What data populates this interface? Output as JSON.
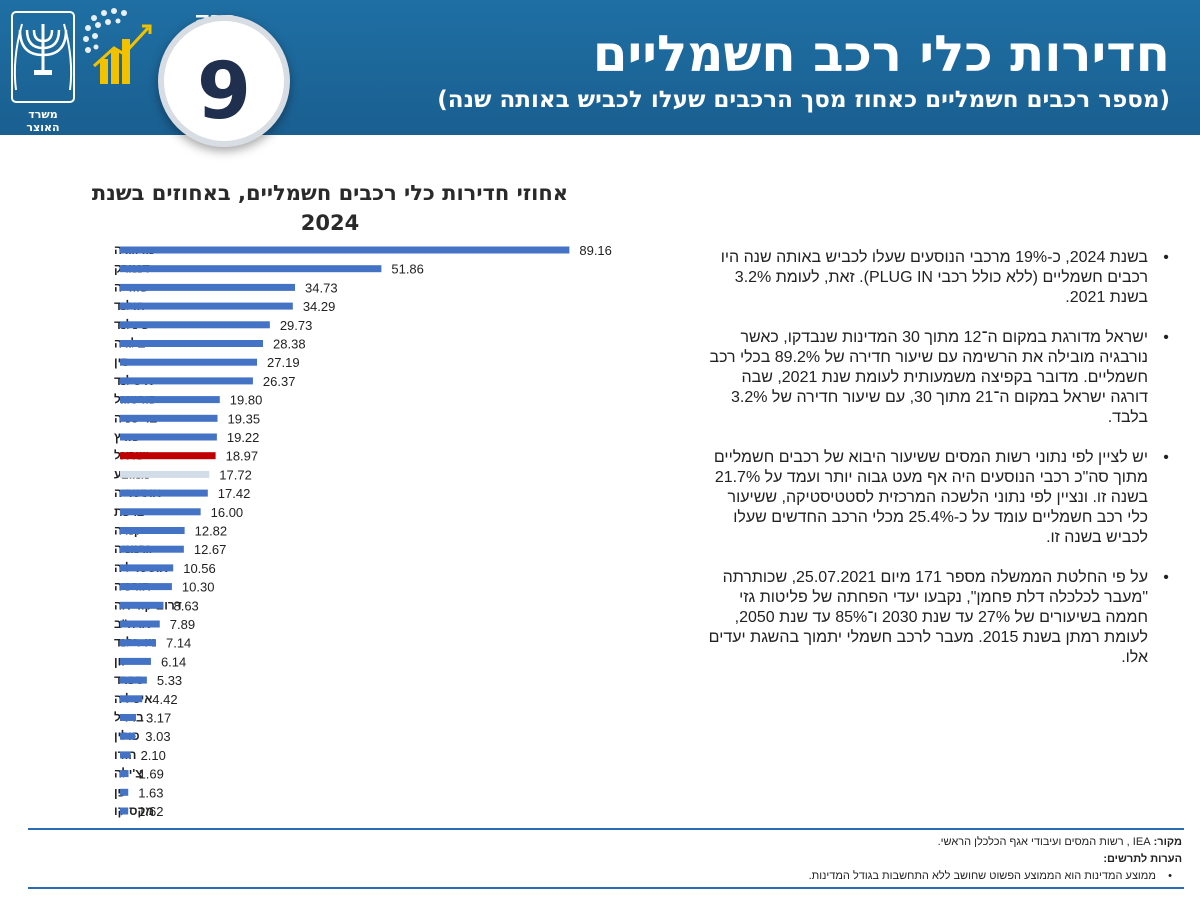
{
  "header": {
    "title": "חדירות כלי רכב חשמליים",
    "subtitle": "(מספר רכבים חשמליים כאחוז מסך הרכבים שעלו לכביש באותה שנה)",
    "chapter_word": "פרק",
    "chapter_number": "9",
    "ministry_name": "משרד האוצר"
  },
  "chart_data": {
    "type": "bar",
    "orientation": "horizontal",
    "title": "אחוזי חדירות כלי רכבים חשמליים, באחוזים בשנת 2024",
    "title_line1": "אחוזי חדירות כלי רכבים חשמליים, באחוזים בשנת",
    "title_line2": "2024",
    "categories": [
      "נורווגיה",
      "דנמרק",
      "שוודיה",
      "הולנד",
      "פינלנד",
      "בלגיה",
      "סין",
      "איסלנד",
      "פורטוגל",
      "בריטניה",
      "שוויץ",
      "ישראל",
      "ממוצע",
      "אוסטריה",
      "צרפת",
      "קנדה",
      "גרמניה",
      "אוסטרליה",
      "תורכיה",
      "דרום קוריאה",
      "ארה\"ב",
      "ניו זילנד",
      "יוון",
      "ספרד",
      "איטליה",
      "ברזיל",
      "פולין",
      "הודו",
      "צ'ילה",
      "יפן",
      "מקסיקו"
    ],
    "values": [
      89.16,
      51.86,
      34.73,
      34.29,
      29.73,
      28.38,
      27.19,
      26.37,
      19.8,
      19.35,
      19.22,
      18.97,
      17.72,
      17.42,
      16.0,
      12.82,
      12.67,
      10.56,
      10.3,
      8.63,
      7.89,
      7.14,
      6.14,
      5.33,
      4.42,
      3.17,
      3.03,
      2.1,
      1.69,
      1.63,
      1.62
    ],
    "value_labels": [
      "89.16",
      "51.86",
      "34.73",
      "34.29",
      "29.73",
      "28.38",
      "27.19",
      "26.37",
      "19.80",
      "19.35",
      "19.22",
      "18.97",
      "17.72",
      "17.42",
      "16.00",
      "12.82",
      "12.67",
      "10.56",
      "10.30",
      "8.63",
      "7.89",
      "7.14",
      "6.14",
      "5.33",
      "4.42",
      "3.17",
      "3.03",
      "2.10",
      "1.69",
      "1.63",
      "1.62"
    ],
    "highlight": {
      "ישראל": "#c00000",
      "ממוצע": "#d3dde8"
    },
    "bar_color": "#4472c4",
    "xlim": [
      0,
      100
    ],
    "grid": false
  },
  "bullets": [
    "בשנת 2024, כ-19% מרכבי הנוסעים שעלו לכביש באותה שנה היו רכבים חשמליים (ללא כולל רכבי PLUG IN). זאת, לעומת 3.2% בשנת 2021.",
    "ישראל מדורגת במקום ה־12 מתוך 30 המדינות שנבדקו, כאשר נורבגיה מובילה את הרשימה עם שיעור חדירה של 89.2% בכלי רכב חשמליים. מדובר בקפיצה משמעותית לעומת שנת 2021, שבה דורגה ישראל במקום ה־21 מתוך 30, עם שיעור חדירה של 3.2% בלבד.",
    "יש לציין לפי נתוני רשות המסים ששיעור היבוא של רכבים חשמליים מתוך סה\"כ רכבי הנוסעים היה אף מעט גבוה יותר ועמד על 21.7% בשנה זו. ונציין לפי נתוני הלשכה המרכזית לסטטיסטיקה, ששיעור כלי רכב חשמליים עומד על כ-25.4% מכלי הרכב החדשים שעלו לכביש בשנה זו.",
    "על פי החלטת הממשלה מספר 171 מיום 25.07.2021, שכותרתה \"מעבר לכלכלה דלת פחמן\", נקבעו יעדי הפחתה של פליטות גזי חממה בשיעורים של 27% עד שנת 2030 ו־85% עד שנת 2050, לעומת רמתן בשנת 2015. מעבר לרכב חשמלי יתמוך בהשגת יעדים אלו."
  ],
  "footer": {
    "source_label": "מקור:",
    "source_text": "IEA , רשות המסים ועיבודי אגף הכלכלן הראשי.",
    "notes_label": "הערות לתרשים:",
    "note": "ממוצע המדינות הוא הממוצע הפשוט שחושב ללא התחשבות בגודל המדינות.",
    "bullet_char": "•"
  },
  "colors": {
    "header_bg": "#1f6fa4",
    "accent": "#2a6db5"
  },
  "icons": [
    "menorah-emblem-icon",
    "growth-chart-logo-icon"
  ]
}
